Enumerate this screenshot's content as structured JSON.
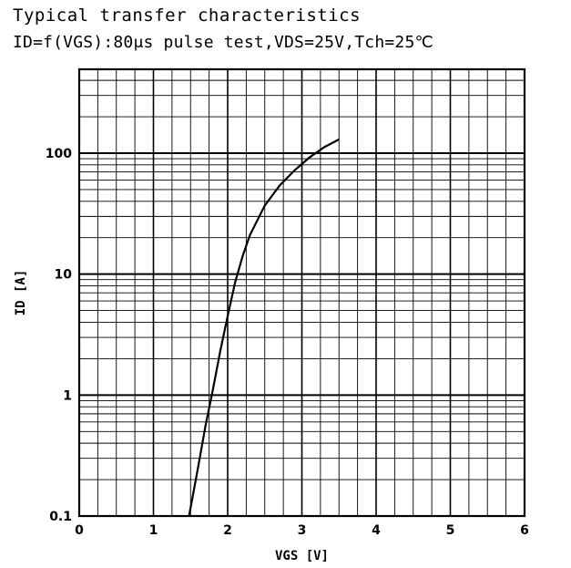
{
  "chart_data": {
    "type": "line",
    "title": "Typical transfer characteristics",
    "subtitle": "ID=f(VGS):80μs pulse test,VDS=25V,Tch=25℃",
    "xlabel": "VGS [V]",
    "ylabel": "ID [A]",
    "xlim": [
      0,
      6
    ],
    "ylim": [
      0.1,
      400
    ],
    "yscale": "log",
    "grid": true,
    "x_ticks": [
      "0",
      "1",
      "2",
      "3",
      "4",
      "5",
      "6"
    ],
    "y_ticks": [
      "0.1",
      "1",
      "10",
      "100"
    ],
    "series": [
      {
        "x": [
          1.48,
          1.6,
          1.7,
          1.8,
          1.9,
          2.0,
          2.1,
          2.2,
          2.3,
          2.5,
          2.7,
          2.9,
          3.1,
          3.3,
          3.5
        ],
        "y": [
          0.1,
          0.25,
          0.55,
          1.1,
          2.3,
          4.5,
          8.5,
          14,
          21,
          37,
          54,
          72,
          92,
          112,
          130
        ]
      }
    ]
  }
}
